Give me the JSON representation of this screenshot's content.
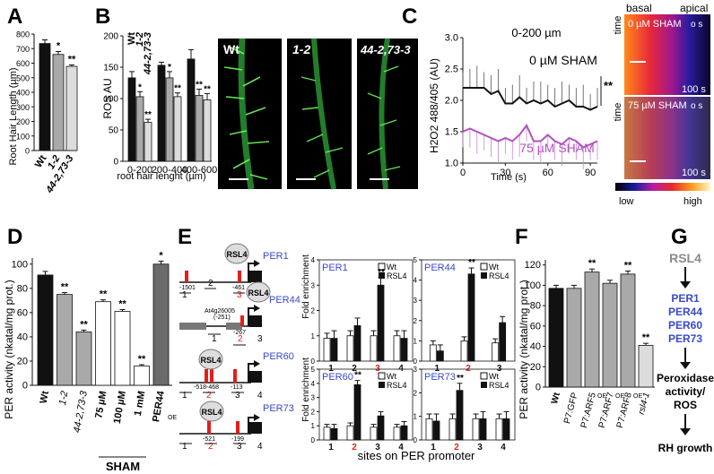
{
  "panels": {
    "A": {
      "letter": "A",
      "ylabel": "Root Hair Length (µm)",
      "yticks": [
        "0",
        "100",
        "200",
        "300",
        "400",
        "500",
        "600",
        "700",
        "800"
      ],
      "xlabels": [
        "Wt",
        "1-2",
        "44-2,73-3"
      ],
      "stars": [
        "",
        "*",
        "**"
      ]
    },
    "B": {
      "letter": "B",
      "ylabel": "ROS AU",
      "yticks": [
        "0",
        "50",
        "100",
        "150",
        "200"
      ],
      "legend": [
        "Wt",
        "1-2",
        "44-2,73-3"
      ],
      "groups": [
        "0-200",
        "200-400",
        "400-600"
      ],
      "xlabel": "root hair lenght (µm)",
      "image_labels": [
        "Wt",
        "1-2",
        "44-2,73-3"
      ]
    },
    "C": {
      "letter": "C",
      "ylabel": "H2O2 488/405 (AU)",
      "yticks": [
        "1.0",
        "1.5",
        "2.0",
        "2.5",
        "3.0"
      ],
      "xticks": [
        "0",
        "30",
        "60",
        "90"
      ],
      "xlabel": "Time (s)",
      "range_label": "0-200 µm",
      "series_labels": [
        "0 µM SHAM",
        "75 µM SHAM"
      ],
      "sig": "**",
      "kymo_top": [
        "basal",
        "apical"
      ],
      "kymo_axis": "time",
      "kymo1_label": "0 µM SHAM",
      "kymo2_label": "75 µM SHAM",
      "kymo_os": "o s",
      "kymo_time": "100 s",
      "colorbar": [
        "low",
        "high"
      ]
    },
    "D": {
      "letter": "D",
      "ylabel": "PER activity (nkatal/mg prot.)",
      "yticks": [
        "0",
        "20",
        "40",
        "60",
        "80",
        "100"
      ],
      "xlabels": [
        "Wt",
        "1-2",
        "44-2,73-3",
        "75 µM",
        "100 µM",
        "1 mM",
        "PER44"
      ],
      "oe": "OE",
      "sham": "SHAM",
      "stars": [
        "",
        "**",
        "**",
        "**",
        "**",
        "**",
        "*"
      ]
    },
    "E": {
      "letter": "E",
      "tf": "RSL4",
      "genes": [
        "PER1",
        "PER44",
        "PER60",
        "PER73"
      ],
      "per1_pos": [
        "-1501",
        "-461"
      ],
      "per44_pos": [
        "At4g26005",
        "(-251)",
        "-267"
      ],
      "per60_pos": [
        "-518-468",
        "-113"
      ],
      "per73_pos": [
        "-521",
        "-199"
      ],
      "ylabel": "Fold enrichment",
      "legend": [
        "Wt",
        "RSL4"
      ],
      "xlabel": "sites on PER promoter",
      "sites4": [
        "1",
        "2",
        "3",
        "4"
      ],
      "sites3": [
        "1",
        "2",
        "3"
      ],
      "chip_yticks": [
        "0",
        "1",
        "2",
        "3",
        "4"
      ],
      "sig": "**"
    },
    "F": {
      "letter": "F",
      "ylabel": "PER activity (nkatal/mg prot.)",
      "yticks": [
        "0",
        "20",
        "40",
        "60",
        "80",
        "100",
        "120"
      ],
      "xlabels": [
        "Wt",
        "P7:GFP",
        "P7:ARF5",
        "P7:ARF7",
        "P7:ARF8",
        "rsl4-1"
      ],
      "oe": "OE",
      "stars": [
        "",
        "",
        "**",
        "",
        "**",
        "**"
      ]
    },
    "G": {
      "letter": "G",
      "top": "RSL4",
      "genes": [
        "PER1",
        "PER44",
        "PER60",
        "PER73"
      ],
      "mid": [
        "Peroxidase",
        "activity/",
        "ROS"
      ],
      "bottom": "RH growth"
    }
  },
  "colors": {
    "black": "#111111",
    "gray": "#a9a9a9",
    "light": "#dcdcdc",
    "white": "#ffffff",
    "red": "#e0201b",
    "magenta": "#b34fc1",
    "blue": "#3a49c9",
    "dark": "#6b6b6b"
  },
  "chart_data": [
    {
      "panel": "A",
      "type": "bar",
      "categories": [
        "Wt",
        "1-2",
        "44-2,73-3"
      ],
      "values": [
        735,
        660,
        578
      ],
      "errors": [
        25,
        20,
        10
      ],
      "ylim": [
        0,
        800
      ],
      "ylabel": "Root Hair Length (µm)"
    },
    {
      "panel": "B",
      "type": "bar",
      "categories": [
        "0-200",
        "200-400",
        "400-600"
      ],
      "series": [
        {
          "name": "Wt",
          "values": [
            133,
            153,
            163
          ]
        },
        {
          "name": "1-2",
          "values": [
            103,
            133,
            105
          ]
        },
        {
          "name": "44-2,73-3",
          "values": [
            62,
            103,
            98
          ]
        }
      ],
      "errors": [
        [
          10,
          5,
          15
        ],
        [
          8,
          10,
          10
        ],
        [
          5,
          6,
          10
        ]
      ],
      "ylim": [
        0,
        200
      ],
      "ylabel": "ROS AU",
      "xlabel": "root hair lenght (µm)"
    },
    {
      "panel": "C",
      "type": "line",
      "x": [
        0,
        5,
        10,
        15,
        20,
        25,
        30,
        35,
        40,
        45,
        50,
        55,
        60,
        65,
        70,
        75,
        80,
        85,
        90,
        95
      ],
      "series": [
        {
          "name": "0 µM SHAM",
          "values": [
            2.2,
            2.2,
            2.2,
            2.2,
            2.1,
            2.15,
            1.95,
            1.95,
            2.05,
            1.95,
            2.0,
            1.95,
            2.0,
            1.9,
            1.95,
            2.0,
            1.9,
            1.9,
            1.85,
            1.9
          ]
        },
        {
          "name": "75 µM SHAM",
          "values": [
            1.5,
            1.55,
            1.5,
            1.45,
            1.4,
            1.35,
            1.4,
            1.35,
            1.45,
            1.6,
            1.35,
            1.35,
            1.45,
            1.35,
            1.3,
            1.4,
            1.35,
            1.25,
            1.3,
            1.35
          ]
        }
      ],
      "ylim": [
        1.0,
        3.0
      ],
      "xlim": [
        0,
        95
      ],
      "ylabel": "H2O2 488/405 (AU)",
      "xlabel": "Time (s)"
    },
    {
      "panel": "D",
      "type": "bar",
      "categories": [
        "Wt",
        "1-2",
        "44-2,73-3",
        "75 µM SHAM",
        "100 µM SHAM",
        "1 mM SHAM",
        "PER44 OE"
      ],
      "values": [
        91,
        75,
        44,
        69,
        61,
        16,
        100
      ],
      "errors": [
        3,
        1.5,
        1.5,
        1.5,
        1.5,
        1,
        2.5
      ],
      "ylim": [
        0,
        105
      ],
      "ylabel": "PER activity (nkatal/mg prot.)"
    },
    {
      "panel": "E-PER1",
      "type": "bar",
      "categories": [
        "1",
        "2",
        "3",
        "4"
      ],
      "series": [
        {
          "name": "Wt",
          "values": [
            0.9,
            1.0,
            1.0,
            1.0
          ]
        },
        {
          "name": "RSL4",
          "values": [
            0.9,
            1.4,
            3.0,
            0.9
          ]
        }
      ],
      "ylim": [
        0,
        4
      ],
      "ylabel": "Fold enrichment"
    },
    {
      "panel": "E-PER44",
      "type": "bar",
      "categories": [
        "1",
        "2",
        "3"
      ],
      "series": [
        {
          "name": "Wt",
          "values": [
            0.8,
            1.0,
            0.9
          ]
        },
        {
          "name": "RSL4",
          "values": [
            0.5,
            4.3,
            1.9
          ]
        }
      ],
      "ylim": [
        0,
        5
      ]
    },
    {
      "panel": "E-PER60",
      "type": "bar",
      "categories": [
        "1",
        "2",
        "3",
        "4"
      ],
      "series": [
        {
          "name": "Wt",
          "values": [
            0.9,
            1.0,
            0.9,
            0.9
          ]
        },
        {
          "name": "RSL4",
          "values": [
            0.8,
            3.9,
            1.7,
            1.0
          ]
        }
      ],
      "ylim": [
        0,
        5
      ],
      "ylabel": "Fold enrichment"
    },
    {
      "panel": "E-PER73",
      "type": "bar",
      "categories": [
        "1",
        "2",
        "3",
        "4"
      ],
      "series": [
        {
          "name": "Wt",
          "values": [
            0.9,
            0.9,
            0.9,
            0.9
          ]
        },
        {
          "name": "RSL4",
          "values": [
            0.8,
            2.1,
            0.9,
            0.9
          ]
        }
      ],
      "ylim": [
        0,
        3
      ]
    },
    {
      "panel": "F",
      "type": "bar",
      "categories": [
        "Wt",
        "P7:GFP",
        "P7:ARF5 OE",
        "P7:ARF7 OE",
        "P7:ARF8 OE",
        "rsl4-1"
      ],
      "values": [
        97,
        97,
        113,
        102,
        111,
        41
      ],
      "errors": [
        3,
        3,
        3,
        3,
        3,
        2
      ],
      "ylim": [
        0,
        125
      ],
      "ylabel": "PER activity (nkatal/mg prot.)"
    }
  ]
}
